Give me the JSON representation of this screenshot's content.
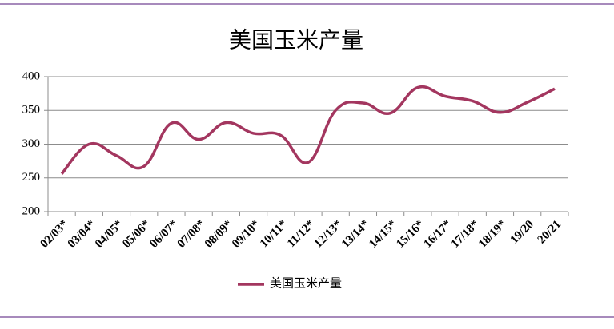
{
  "chart_data": {
    "type": "line",
    "title": "美国玉米产量",
    "categories": [
      "02/03*",
      "03/04*",
      "04/05*",
      "05/06*",
      "06/07*",
      "07/08*",
      "08/09*",
      "09/10*",
      "10/11*",
      "11/12*",
      "12/13*",
      "13/14*",
      "14/15*",
      "15/16*",
      "16/17*",
      "17/18*",
      "18/19*",
      "19/20",
      "20/21"
    ],
    "series": [
      {
        "name": "美国玉米产量",
        "color": "#a3365f",
        "values": [
          256,
          300,
          283,
          267,
          331,
          307,
          332,
          316,
          313,
          273,
          350,
          361,
          346,
          384,
          371,
          364,
          347,
          362,
          382
        ]
      }
    ],
    "ylim": [
      200,
      400
    ],
    "yticks": [
      200,
      250,
      300,
      350,
      400
    ],
    "grid": true,
    "legend": "bottom"
  }
}
